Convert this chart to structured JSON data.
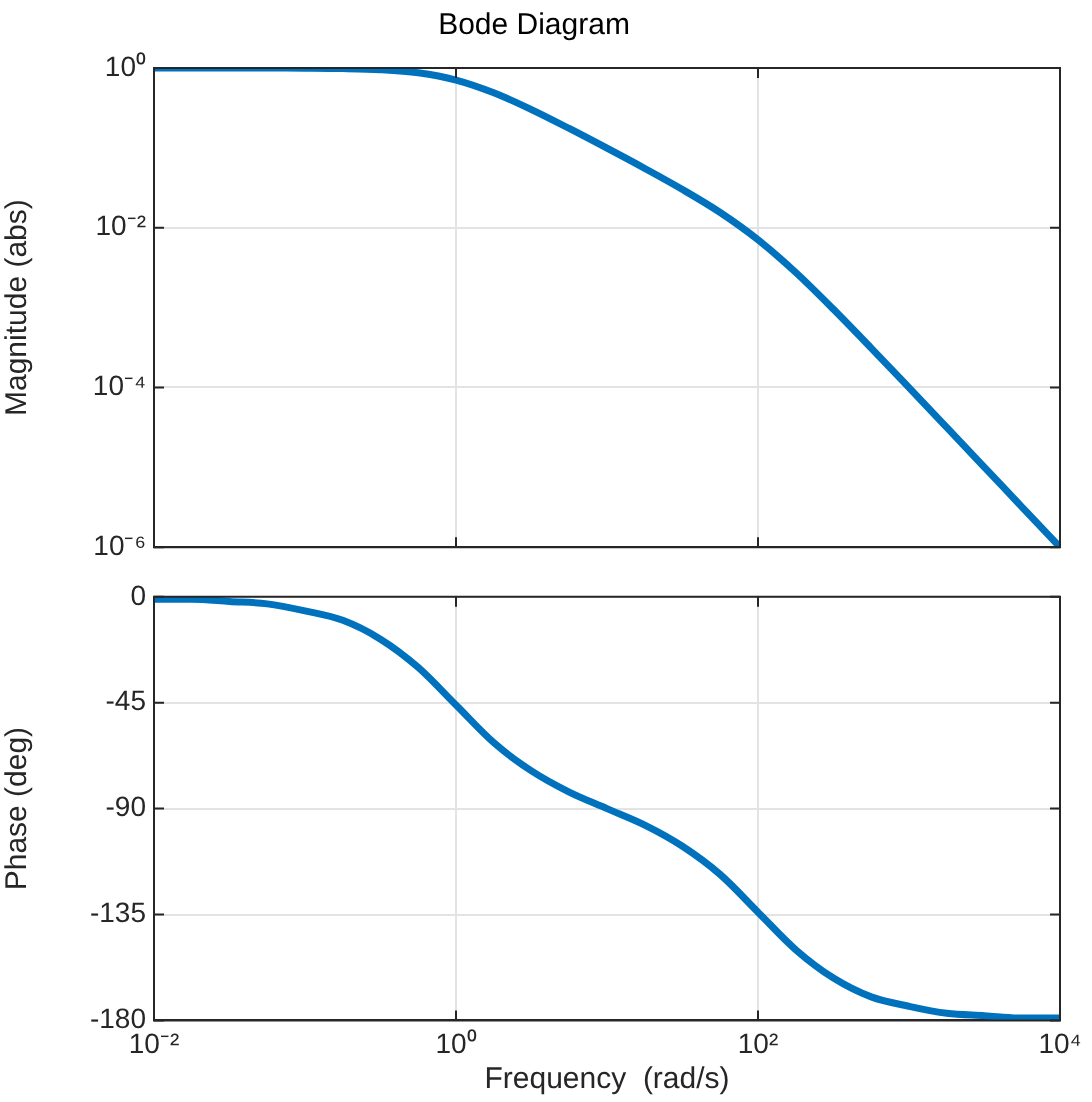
{
  "chart_data": [
    {
      "type": "line",
      "title": "Bode Diagram",
      "ylabel": "Magnitude (abs)",
      "x": [
        0.01,
        0.0178,
        0.0316,
        0.0562,
        0.1,
        0.178,
        0.316,
        0.562,
        1,
        1.78,
        3.16,
        5.62,
        10,
        17.8,
        31.6,
        56.2,
        100,
        178,
        316,
        562,
        1000,
        1778,
        3162,
        5623,
        10000
      ],
      "series": [
        {
          "color": "#0072bd",
          "values": [
            1.0,
            0.9998,
            0.9995,
            0.9984,
            0.995,
            0.9845,
            0.953,
            0.872,
            0.707,
            0.4896,
            0.3014,
            0.1749,
            0.099,
            0.0552,
            0.0301,
            0.01551,
            0.00707,
            0.002751,
            0.000953,
            0.0003114,
            9.95e-05,
            3.16e-05,
            1e-05,
            3.16e-06,
            1e-06
          ]
        }
      ],
      "log": "xy",
      "xlim": [
        0.01,
        10000
      ],
      "xticks": [
        {
          "value": 0.01,
          "label": null
        },
        {
          "value": 1,
          "label": null
        },
        {
          "value": 100,
          "label": null
        },
        {
          "value": 10000,
          "label": null
        }
      ],
      "ylim": [
        1e-06,
        1
      ],
      "yticks": [
        {
          "value": 1e-06,
          "label": "10⁻⁶"
        },
        {
          "value": 0.0001,
          "label": "10⁻⁴"
        },
        {
          "value": 0.01,
          "label": "10⁻²"
        },
        {
          "value": 1,
          "label": "10⁰"
        }
      ],
      "tick_labels": "y",
      "grid": true,
      "legend": false,
      "marker": "none",
      "line_style": "solid"
    },
    {
      "type": "line",
      "xlabel": "Frequency  (rad/s)",
      "ylabel": "Phase (deg)",
      "x": [
        0.01,
        0.0178,
        0.0316,
        0.0562,
        0.1,
        0.178,
        0.316,
        0.562,
        1,
        1.78,
        3.16,
        5.62,
        10,
        17.8,
        31.6,
        56.2,
        100,
        178,
        316,
        562,
        1000,
        1778,
        3162,
        5623,
        10000
      ],
      "series": [
        {
          "color": "#0072bd",
          "values": [
            -1,
            -1,
            -2,
            -3,
            -6,
            -10,
            -18,
            -30,
            -46,
            -62,
            -74,
            -83,
            -90,
            -97,
            -106,
            -118,
            -134,
            -150,
            -162,
            -170,
            -174,
            -177,
            -178,
            -179,
            -179
          ]
        }
      ],
      "log": "x",
      "xlim": [
        0.01,
        10000
      ],
      "xticks": [
        {
          "value": 0.01,
          "label": "10⁻²"
        },
        {
          "value": 1,
          "label": "10⁰"
        },
        {
          "value": 100,
          "label": "10²"
        },
        {
          "value": 10000,
          "label": "10⁴"
        }
      ],
      "ylim": [
        -180,
        0
      ],
      "yticks": [
        -180,
        -135,
        -90,
        -45,
        0
      ],
      "grid": true,
      "legend": false,
      "marker": "none",
      "line_style": "solid"
    }
  ]
}
